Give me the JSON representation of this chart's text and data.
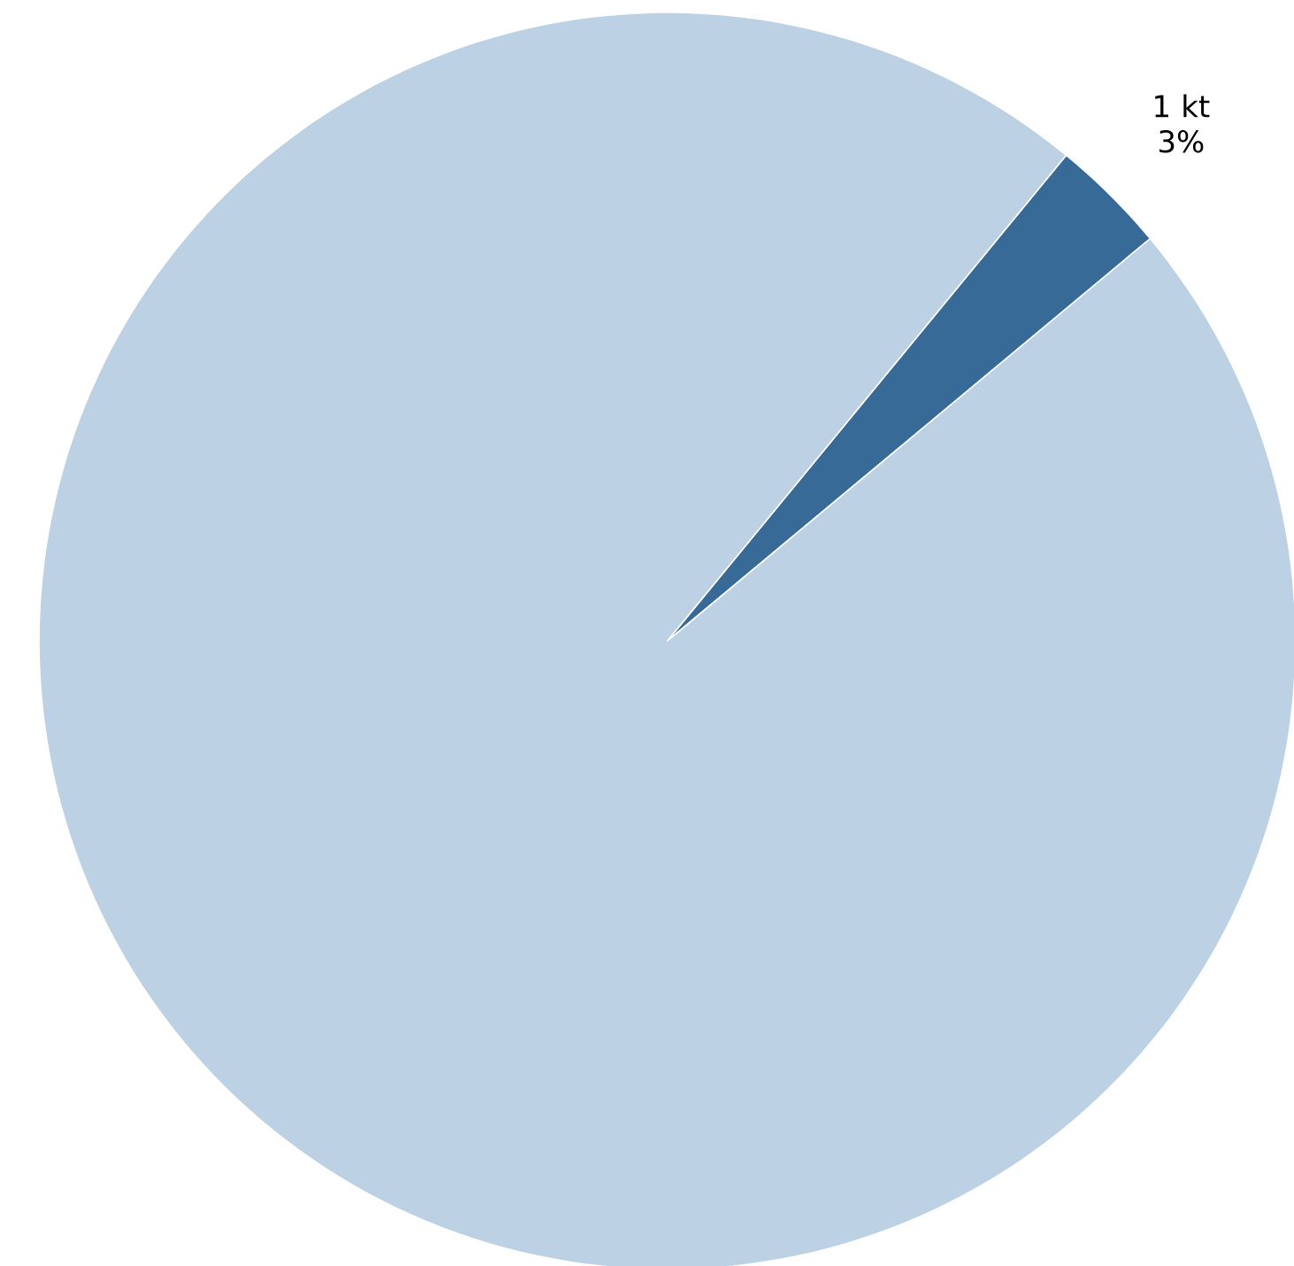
{
  "chart_data": {
    "type": "pie",
    "categories": [
      null,
      null
    ],
    "values": [
      3,
      97
    ],
    "colors": [
      "#376a96",
      "#bcd2e4"
    ],
    "value_labels": [
      "1 kt 3%",
      null
    ]
  }
}
